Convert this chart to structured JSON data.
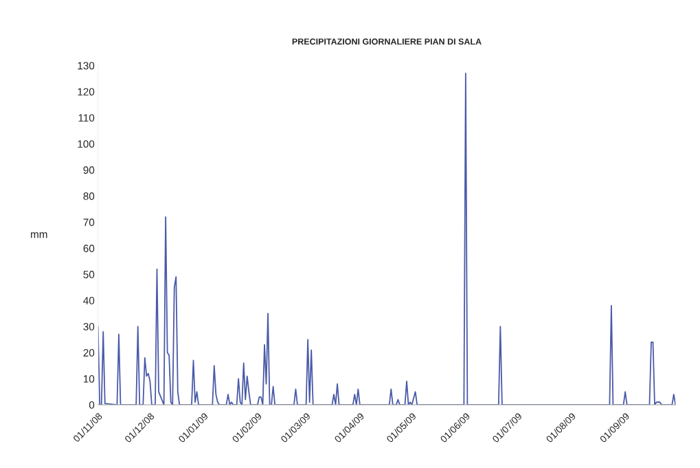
{
  "chart_data": {
    "type": "line",
    "title": "PRECIPITAZIONI GIORNALIERE PIAN DI SALA",
    "ylabel": "mm",
    "x": [
      "2008-11-01",
      "2008-11-02",
      "2008-11-03",
      "2008-11-04",
      "2008-11-05",
      "2008-11-12",
      "2008-11-13",
      "2008-11-14",
      "2008-11-23",
      "2008-11-24",
      "2008-11-25",
      "2008-11-27",
      "2008-11-28",
      "2008-11-29",
      "2008-11-30",
      "2008-12-01",
      "2008-12-02",
      "2008-12-04",
      "2008-12-05",
      "2008-12-06",
      "2008-12-09",
      "2008-12-10",
      "2008-12-11",
      "2008-12-12",
      "2008-12-13",
      "2008-12-14",
      "2008-12-15",
      "2008-12-16",
      "2008-12-17",
      "2008-12-18",
      "2008-12-25",
      "2008-12-26",
      "2008-12-27",
      "2008-12-28",
      "2008-12-29",
      "2009-01-06",
      "2009-01-07",
      "2009-01-08",
      "2009-01-09",
      "2009-01-10",
      "2009-01-14",
      "2009-01-15",
      "2009-01-16",
      "2009-01-17",
      "2009-01-18",
      "2009-01-20",
      "2009-01-21",
      "2009-01-22",
      "2009-01-23",
      "2009-01-24",
      "2009-01-25",
      "2009-01-26",
      "2009-01-27",
      "2009-01-28",
      "2009-02-01",
      "2009-02-02",
      "2009-02-03",
      "2009-02-04",
      "2009-02-05",
      "2009-02-06",
      "2009-02-07",
      "2009-02-08",
      "2009-02-09",
      "2009-02-10",
      "2009-02-11",
      "2009-02-22",
      "2009-02-23",
      "2009-02-24",
      "2009-03-01",
      "2009-03-02",
      "2009-03-03",
      "2009-03-04",
      "2009-03-05",
      "2009-03-16",
      "2009-03-17",
      "2009-03-18",
      "2009-03-19",
      "2009-03-20",
      "2009-03-28",
      "2009-03-29",
      "2009-03-30",
      "2009-03-31",
      "2009-04-01",
      "2009-04-18",
      "2009-04-19",
      "2009-04-20",
      "2009-04-22",
      "2009-04-23",
      "2009-04-24",
      "2009-04-27",
      "2009-04-28",
      "2009-04-29",
      "2009-04-30",
      "2009-05-01",
      "2009-05-03",
      "2009-05-04",
      "2009-05-31",
      "2009-06-01",
      "2009-06-02",
      "2009-06-20",
      "2009-06-21",
      "2009-06-22",
      "2009-08-23",
      "2009-08-24",
      "2009-08-25",
      "2009-08-31",
      "2009-09-01",
      "2009-09-02",
      "2009-09-15",
      "2009-09-16",
      "2009-09-17",
      "2009-09-18",
      "2009-09-19",
      "2009-09-20",
      "2009-09-21",
      "2009-09-22",
      "2009-09-28",
      "2009-09-29",
      "2009-09-30"
    ],
    "series": [
      {
        "color": "#4a5aa8",
        "values": [
          30,
          0,
          0,
          28,
          0.5,
          0,
          27,
          0,
          0,
          30,
          0,
          0,
          18,
          11,
          12,
          9,
          0,
          0,
          52,
          5,
          0,
          72,
          20,
          19,
          1,
          0,
          45,
          49,
          5,
          0,
          0,
          17,
          1,
          5,
          0,
          0,
          15,
          4,
          1,
          0,
          0,
          4,
          0,
          1,
          0,
          0,
          10,
          1,
          0,
          16,
          2,
          11,
          5,
          0,
          0,
          3,
          3,
          0,
          23,
          8,
          35,
          0,
          0,
          7,
          0,
          0,
          6,
          0,
          0,
          25,
          1,
          21,
          0,
          0,
          4,
          0,
          8,
          0,
          0,
          4,
          0,
          6,
          0,
          0,
          6,
          0,
          0,
          2,
          0,
          0,
          9,
          0,
          1,
          0,
          5,
          0,
          0,
          127,
          0,
          0,
          30,
          0,
          0,
          38,
          0,
          0,
          5,
          0,
          0,
          24,
          24,
          0,
          1,
          1,
          1,
          0,
          0,
          4,
          0
        ]
      }
    ],
    "xlim": [
      "2008-11-01",
      "2009-09-30"
    ],
    "xticks": [
      {
        "value": "2008-11-01",
        "label": "01/11/08"
      },
      {
        "value": "2008-12-01",
        "label": "01/12/08"
      },
      {
        "value": "2009-01-01",
        "label": "01/01/09"
      },
      {
        "value": "2009-02-01",
        "label": "01/02/09"
      },
      {
        "value": "2009-03-01",
        "label": "01/03/09"
      },
      {
        "value": "2009-04-01",
        "label": "01/04/09"
      },
      {
        "value": "2009-05-01",
        "label": "01/05/09"
      },
      {
        "value": "2009-06-01",
        "label": "01/06/09"
      },
      {
        "value": "2009-07-01",
        "label": "01/07/09"
      },
      {
        "value": "2009-08-01",
        "label": "01/08/09"
      },
      {
        "value": "2009-09-01",
        "label": "01/09/09"
      }
    ],
    "ylim": [
      0,
      130
    ],
    "yticks": [
      0,
      10,
      20,
      30,
      40,
      50,
      60,
      70,
      80,
      90,
      100,
      110,
      120,
      130
    ],
    "grid": false
  }
}
